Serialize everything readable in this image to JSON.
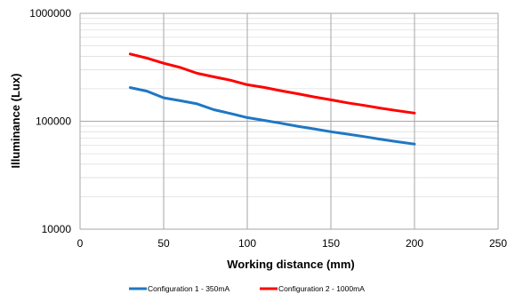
{
  "chart_data": {
    "type": "line",
    "title": "",
    "xlabel": "Working distance (mm)",
    "ylabel": "Illuminance (Lux)",
    "xlim": [
      0,
      250
    ],
    "ylim": [
      10000,
      1000000
    ],
    "yscale": "log",
    "x_ticks": [
      "0",
      "50",
      "100",
      "150",
      "200",
      "250"
    ],
    "y_ticks": [
      "10000",
      "100000",
      "1000000"
    ],
    "grid": true,
    "legend_position": "bottom",
    "series": [
      {
        "name": "Configuration 1 - 350mA",
        "color": "#1F77C4",
        "x": [
          30,
          40,
          50,
          60,
          70,
          80,
          90,
          100,
          110,
          120,
          130,
          140,
          150,
          160,
          170,
          180,
          190,
          200
        ],
        "y": [
          205000,
          190000,
          165000,
          155000,
          145000,
          128000,
          118000,
          108000,
          102000,
          96000,
          90000,
          85000,
          80000,
          76000,
          72000,
          68000,
          64500,
          61500
        ]
      },
      {
        "name": "Configuration 2 - 1000mA",
        "color": "#FF0000",
        "x": [
          30,
          40,
          50,
          60,
          70,
          80,
          90,
          100,
          110,
          120,
          130,
          140,
          150,
          160,
          170,
          180,
          190,
          200
        ],
        "y": [
          420000,
          385000,
          345000,
          315000,
          278000,
          258000,
          240000,
          218000,
          206000,
          192000,
          180000,
          168000,
          158000,
          148000,
          140000,
          132000,
          125000,
          119000
        ]
      }
    ]
  }
}
